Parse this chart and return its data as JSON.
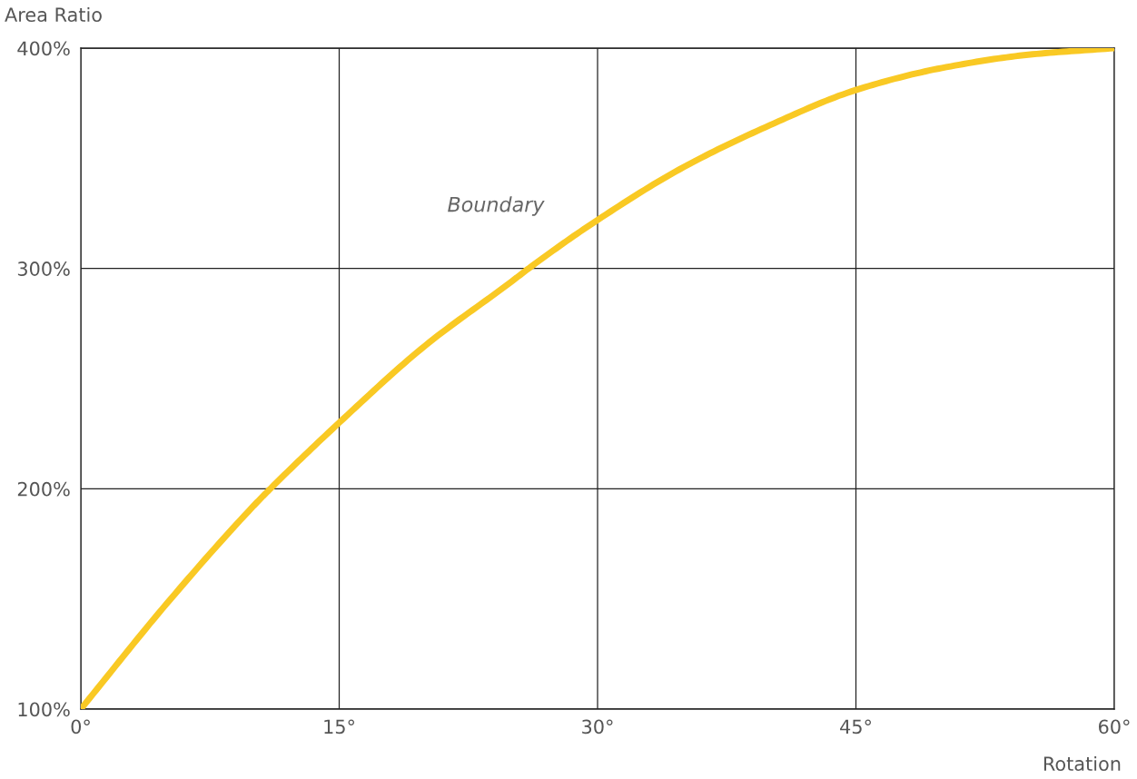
{
  "chart_data": {
    "type": "line",
    "xlabel": "Rotation",
    "ylabel": "Area Ratio",
    "x": [
      0,
      5,
      10,
      11,
      15,
      20,
      25,
      26,
      30,
      35,
      40,
      45,
      50,
      55,
      60
    ],
    "series": [
      {
        "color": "#f9c924",
        "values": [
          100,
          148,
          192,
          200,
          230,
          265,
          294,
          300,
          322,
          346,
          365,
          381,
          391,
          397,
          400
        ]
      }
    ],
    "annotations": [
      "Boundary"
    ],
    "xlim": [
      0,
      60
    ],
    "ylim": [
      100,
      400
    ],
    "xticks": [
      {
        "value": 0,
        "label": "0°"
      },
      {
        "value": 15,
        "label": "15°"
      },
      {
        "value": 30,
        "label": "30°"
      },
      {
        "value": 45,
        "label": "45°"
      },
      {
        "value": 60,
        "label": "60°"
      }
    ],
    "yticks": [
      {
        "value": 100,
        "label": "100%"
      },
      {
        "value": 200,
        "label": "200%"
      },
      {
        "value": 300,
        "label": "300%"
      },
      {
        "value": 400,
        "label": "400%"
      }
    ],
    "grid": true,
    "legend": false,
    "line_style": "solid",
    "marker": "none"
  }
}
